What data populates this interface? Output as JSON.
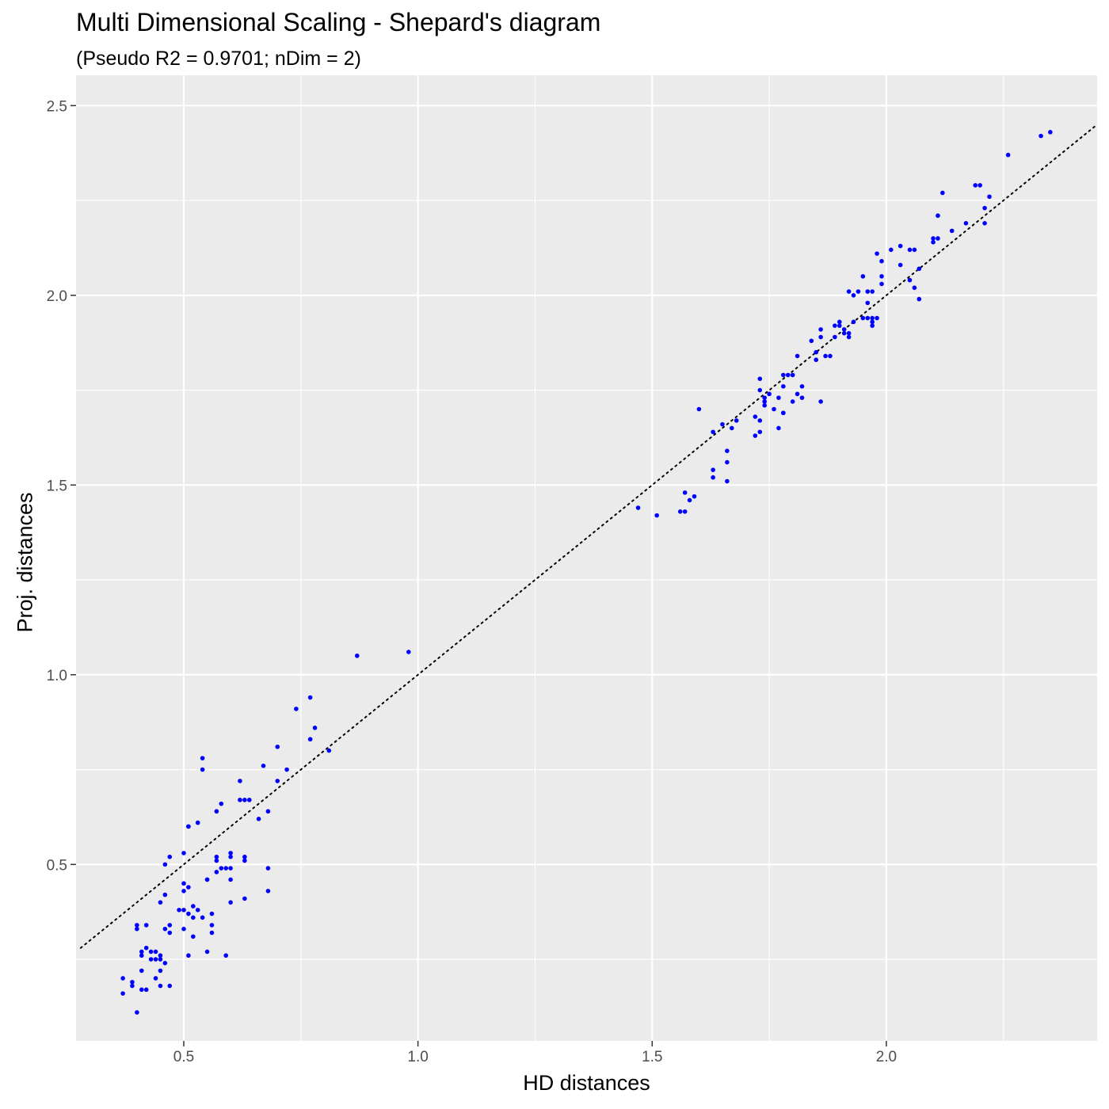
{
  "title": "Multi Dimensional Scaling - Shepard's diagram",
  "subtitle": "(Pseudo R2 = 0.9701; nDim = 2)",
  "colors": {
    "panel": "#ebebeb",
    "grid_major": "#ffffff",
    "points": "#0000ff",
    "reference_line": "#000000",
    "tick_text": "#4d4d4d"
  },
  "chart_data": {
    "type": "scatter",
    "xlabel": "HD distances",
    "ylabel": "Proj. distances",
    "xlim": [
      0.27,
      2.45
    ],
    "ylim": [
      0.035,
      2.58
    ],
    "xticks": [
      0.5,
      1.0,
      1.5,
      2.0
    ],
    "xtick_labels": [
      "0.5",
      "1.0",
      "1.5",
      "2.0"
    ],
    "yticks": [
      0.5,
      1.0,
      1.5,
      2.0,
      2.5
    ],
    "ytick_labels": [
      "0.5",
      "1.0",
      "1.5",
      "2.0",
      "2.5"
    ],
    "grid": true,
    "reference_line": {
      "style": "dotted",
      "slope": 1,
      "intercept": 0,
      "x_range": [
        0.28,
        2.45
      ]
    },
    "points": [
      [
        0.37,
        0.2
      ],
      [
        0.37,
        0.16
      ],
      [
        0.39,
        0.18
      ],
      [
        0.39,
        0.19
      ],
      [
        0.4,
        0.11
      ],
      [
        0.4,
        0.33
      ],
      [
        0.4,
        0.34
      ],
      [
        0.41,
        0.17
      ],
      [
        0.41,
        0.22
      ],
      [
        0.41,
        0.26
      ],
      [
        0.41,
        0.27
      ],
      [
        0.42,
        0.17
      ],
      [
        0.42,
        0.34
      ],
      [
        0.42,
        0.28
      ],
      [
        0.43,
        0.25
      ],
      [
        0.43,
        0.27
      ],
      [
        0.44,
        0.2
      ],
      [
        0.44,
        0.25
      ],
      [
        0.44,
        0.27
      ],
      [
        0.45,
        0.25
      ],
      [
        0.45,
        0.26
      ],
      [
        0.45,
        0.22
      ],
      [
        0.45,
        0.18
      ],
      [
        0.45,
        0.4
      ],
      [
        0.46,
        0.42
      ],
      [
        0.46,
        0.33
      ],
      [
        0.46,
        0.24
      ],
      [
        0.47,
        0.34
      ],
      [
        0.47,
        0.32
      ],
      [
        0.47,
        0.18
      ],
      [
        0.46,
        0.5
      ],
      [
        0.47,
        0.52
      ],
      [
        0.49,
        0.38
      ],
      [
        0.5,
        0.38
      ],
      [
        0.5,
        0.33
      ],
      [
        0.5,
        0.45
      ],
      [
        0.5,
        0.53
      ],
      [
        0.5,
        0.43
      ],
      [
        0.51,
        0.44
      ],
      [
        0.51,
        0.37
      ],
      [
        0.51,
        0.26
      ],
      [
        0.51,
        0.6
      ],
      [
        0.51,
        0.6
      ],
      [
        0.52,
        0.36
      ],
      [
        0.52,
        0.31
      ],
      [
        0.52,
        0.39
      ],
      [
        0.53,
        0.61
      ],
      [
        0.53,
        0.38
      ],
      [
        0.54,
        0.75
      ],
      [
        0.54,
        0.78
      ],
      [
        0.54,
        0.36
      ],
      [
        0.55,
        0.46
      ],
      [
        0.55,
        0.27
      ],
      [
        0.55,
        0.46
      ],
      [
        0.56,
        0.37
      ],
      [
        0.56,
        0.32
      ],
      [
        0.56,
        0.34
      ],
      [
        0.57,
        0.52
      ],
      [
        0.57,
        0.51
      ],
      [
        0.57,
        0.48
      ],
      [
        0.57,
        0.64
      ],
      [
        0.58,
        0.49
      ],
      [
        0.58,
        0.66
      ],
      [
        0.59,
        0.49
      ],
      [
        0.59,
        0.26
      ],
      [
        0.6,
        0.4
      ],
      [
        0.6,
        0.49
      ],
      [
        0.6,
        0.53
      ],
      [
        0.6,
        0.46
      ],
      [
        0.6,
        0.52
      ],
      [
        0.62,
        0.72
      ],
      [
        0.62,
        0.67
      ],
      [
        0.63,
        0.51
      ],
      [
        0.63,
        0.52
      ],
      [
        0.63,
        0.67
      ],
      [
        0.63,
        0.41
      ],
      [
        0.64,
        0.67
      ],
      [
        0.66,
        0.62
      ],
      [
        0.67,
        0.76
      ],
      [
        0.68,
        0.64
      ],
      [
        0.68,
        0.49
      ],
      [
        0.68,
        0.43
      ],
      [
        0.7,
        0.72
      ],
      [
        0.7,
        0.81
      ],
      [
        0.72,
        0.75
      ],
      [
        0.74,
        0.91
      ],
      [
        0.77,
        0.83
      ],
      [
        0.77,
        0.94
      ],
      [
        0.78,
        0.86
      ],
      [
        0.81,
        0.8
      ],
      [
        0.87,
        1.05
      ],
      [
        0.98,
        1.06
      ],
      [
        1.47,
        1.44
      ],
      [
        1.51,
        1.42
      ],
      [
        1.56,
        1.43
      ],
      [
        1.57,
        1.48
      ],
      [
        1.57,
        1.43
      ],
      [
        1.58,
        1.46
      ],
      [
        1.59,
        1.47
      ],
      [
        1.6,
        1.7
      ],
      [
        1.63,
        1.52
      ],
      [
        1.63,
        1.54
      ],
      [
        1.63,
        1.64
      ],
      [
        1.65,
        1.66
      ],
      [
        1.66,
        1.56
      ],
      [
        1.66,
        1.59
      ],
      [
        1.66,
        1.51
      ],
      [
        1.67,
        1.65
      ],
      [
        1.68,
        1.67
      ],
      [
        1.72,
        1.63
      ],
      [
        1.72,
        1.68
      ],
      [
        1.73,
        1.75
      ],
      [
        1.73,
        1.67
      ],
      [
        1.73,
        1.64
      ],
      [
        1.73,
        1.78
      ],
      [
        1.74,
        1.71
      ],
      [
        1.74,
        1.73
      ],
      [
        1.74,
        1.72
      ],
      [
        1.75,
        1.74
      ],
      [
        1.76,
        1.7
      ],
      [
        1.77,
        1.73
      ],
      [
        1.77,
        1.65
      ],
      [
        1.78,
        1.69
      ],
      [
        1.78,
        1.69
      ],
      [
        1.78,
        1.76
      ],
      [
        1.78,
        1.79
      ],
      [
        1.79,
        1.79
      ],
      [
        1.8,
        1.72
      ],
      [
        1.8,
        1.79
      ],
      [
        1.81,
        1.74
      ],
      [
        1.81,
        1.84
      ],
      [
        1.82,
        1.76
      ],
      [
        1.82,
        1.73
      ],
      [
        1.84,
        1.88
      ],
      [
        1.85,
        1.83
      ],
      [
        1.85,
        1.85
      ],
      [
        1.86,
        1.89
      ],
      [
        1.86,
        1.72
      ],
      [
        1.86,
        1.91
      ],
      [
        1.87,
        1.84
      ],
      [
        1.88,
        1.84
      ],
      [
        1.89,
        1.89
      ],
      [
        1.89,
        1.92
      ],
      [
        1.9,
        1.92
      ],
      [
        1.9,
        1.93
      ],
      [
        1.91,
        1.9
      ],
      [
        1.91,
        1.91
      ],
      [
        1.92,
        1.89
      ],
      [
        1.92,
        1.9
      ],
      [
        1.92,
        2.01
      ],
      [
        1.93,
        1.93
      ],
      [
        1.93,
        2.0
      ],
      [
        1.94,
        2.01
      ],
      [
        1.95,
        1.94
      ],
      [
        1.95,
        2.05
      ],
      [
        1.96,
        1.98
      ],
      [
        1.96,
        2.01
      ],
      [
        1.96,
        1.94
      ],
      [
        1.97,
        2.01
      ],
      [
        1.97,
        1.92
      ],
      [
        1.97,
        1.93
      ],
      [
        1.97,
        1.94
      ],
      [
        1.98,
        1.94
      ],
      [
        1.98,
        2.11
      ],
      [
        1.99,
        2.05
      ],
      [
        1.99,
        2.03
      ],
      [
        1.99,
        2.09
      ],
      [
        2.01,
        2.12
      ],
      [
        2.03,
        2.08
      ],
      [
        2.03,
        2.13
      ],
      [
        2.05,
        2.12
      ],
      [
        2.05,
        2.04
      ],
      [
        2.06,
        2.12
      ],
      [
        2.06,
        2.02
      ],
      [
        2.07,
        1.99
      ],
      [
        2.07,
        2.07
      ],
      [
        2.1,
        2.14
      ],
      [
        2.1,
        2.15
      ],
      [
        2.11,
        2.21
      ],
      [
        2.11,
        2.15
      ],
      [
        2.12,
        2.27
      ],
      [
        2.14,
        2.17
      ],
      [
        2.17,
        2.19
      ],
      [
        2.19,
        2.29
      ],
      [
        2.2,
        2.29
      ],
      [
        2.21,
        2.23
      ],
      [
        2.21,
        2.19
      ],
      [
        2.22,
        2.26
      ],
      [
        2.26,
        2.37
      ],
      [
        2.33,
        2.42
      ],
      [
        2.35,
        2.43
      ]
    ]
  }
}
